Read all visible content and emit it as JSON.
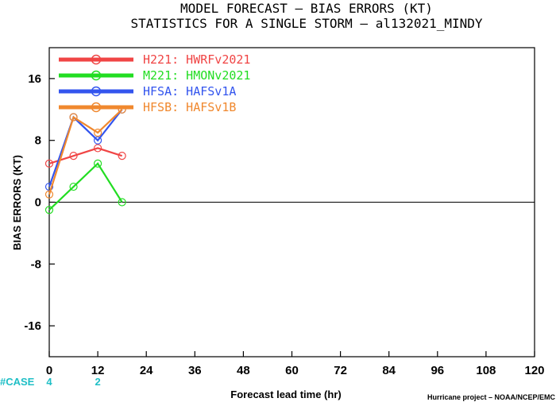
{
  "chart_data": {
    "type": "line",
    "title": "MODEL FORECAST – BIAS ERRORS (KT)",
    "subtitle": "STATISTICS FOR A SINGLE STORM – al132021_MINDY",
    "xlabel": "Forecast lead time (hr)",
    "ylabel": "BIAS ERRORS (KT)",
    "xlim": [
      0,
      120
    ],
    "ylim": [
      -20,
      20
    ],
    "xticks": [
      "0",
      "12",
      "24",
      "36",
      "48",
      "60",
      "72",
      "84",
      "96",
      "108",
      "120"
    ],
    "yticks": [
      "16",
      "8",
      "0",
      "-8",
      "-16"
    ],
    "ytick_values": [
      16,
      8,
      0,
      -8,
      -16
    ],
    "zero_line": true,
    "legend_position": "top-left",
    "series": [
      {
        "name": "H221: HWRFv2021",
        "color": "#f04545",
        "x": [
          0,
          6,
          12,
          18
        ],
        "y": [
          5,
          6,
          7,
          6
        ]
      },
      {
        "name": "M221: HMONv2021",
        "color": "#22dd22",
        "x": [
          0,
          6,
          12,
          18
        ],
        "y": [
          -1,
          2,
          5,
          0
        ]
      },
      {
        "name": "HFSA: HAFSv1A",
        "color": "#3355ee",
        "x": [
          0,
          6,
          12,
          18
        ],
        "y": [
          2,
          11,
          8,
          12
        ]
      },
      {
        "name": "HFSB: HAFSv1B",
        "color": "#f0882e",
        "x": [
          0,
          6,
          12,
          18
        ],
        "y": [
          1,
          11,
          9,
          12
        ]
      }
    ],
    "case_label": "#CASE",
    "cases": [
      {
        "x": 0,
        "label": "4"
      },
      {
        "x": 12,
        "label": "2"
      }
    ],
    "credit": "Hurricane project – NOAA/NCEP/EMC"
  }
}
